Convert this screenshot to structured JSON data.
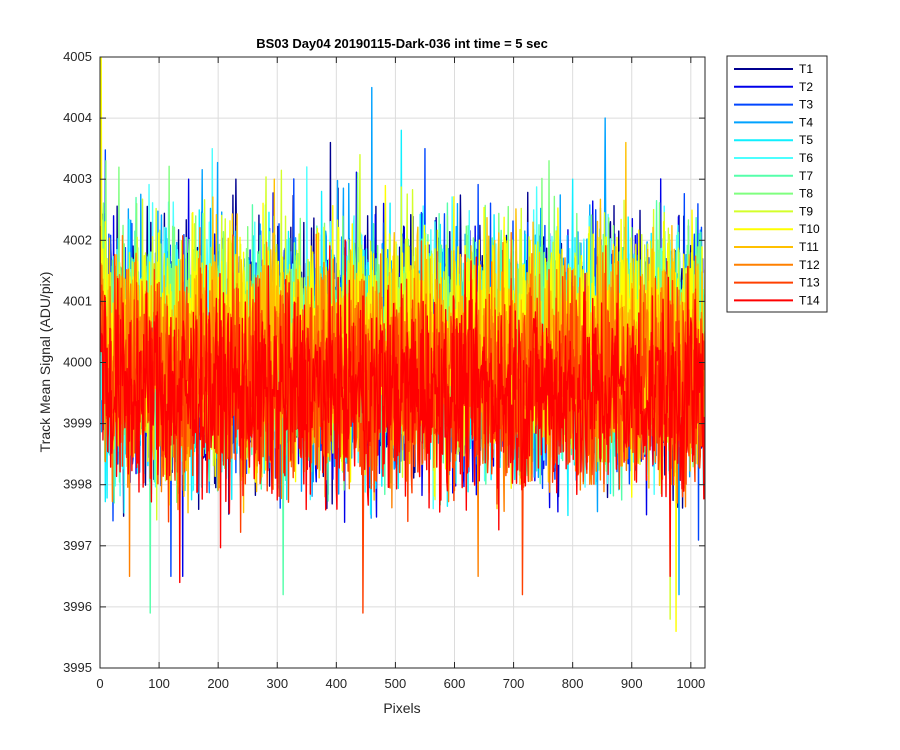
{
  "chart_data": {
    "type": "line",
    "title": "BS03 Day04 20190115-Dark-036 int time = 5 sec",
    "xlabel": "Pixels",
    "ylabel": "Track Mean Signal (ADU/pix)",
    "xlim": [
      0,
      1024
    ],
    "ylim": [
      3995,
      4005
    ],
    "xticks": [
      0,
      100,
      200,
      300,
      400,
      500,
      600,
      700,
      800,
      900,
      1000
    ],
    "yticks": [
      3995,
      3996,
      3997,
      3998,
      3999,
      4000,
      4001,
      4002,
      4003,
      4004,
      4005
    ],
    "grid": true,
    "legend_position": "outside-right",
    "series": [
      {
        "name": "T1",
        "color": "#00008f",
        "center": 4000.2,
        "spread": 2.7,
        "peaks": [
          [
            230,
            4003.0
          ],
          [
            390,
            4003.6
          ]
        ]
      },
      {
        "name": "T2",
        "color": "#0000ea",
        "center": 4000.1,
        "spread": 2.7,
        "peaks": [
          [
            150,
            4003.0
          ],
          [
            140,
            3996.5
          ]
        ]
      },
      {
        "name": "T3",
        "color": "#0046ff",
        "center": 4000.2,
        "spread": 2.7,
        "peaks": [
          [
            550,
            4003.5
          ],
          [
            120,
            3996.5
          ]
        ]
      },
      {
        "name": "T4",
        "color": "#00a2ff",
        "center": 4000.2,
        "spread": 2.7,
        "peaks": [
          [
            460,
            4004.5
          ],
          [
            855,
            4004.0
          ],
          [
            980,
            3996.2
          ]
        ]
      },
      {
        "name": "T5",
        "color": "#0ff0ff",
        "center": 4000.1,
        "spread": 2.6,
        "peaks": [
          [
            510,
            4003.8
          ],
          [
            800,
            4003.0
          ]
        ]
      },
      {
        "name": "T6",
        "color": "#4cffff",
        "center": 4000.2,
        "spread": 2.6,
        "peaks": [
          [
            190,
            4003.5
          ],
          [
            350,
            4003.2
          ]
        ]
      },
      {
        "name": "T7",
        "color": "#55ffaa",
        "center": 4000.2,
        "spread": 2.6,
        "peaks": [
          [
            85,
            3995.9
          ],
          [
            310,
            3996.2
          ]
        ]
      },
      {
        "name": "T8",
        "color": "#7fff7f",
        "center": 4000.4,
        "spread": 2.6,
        "peaks": [
          [
            10,
            4003.3
          ],
          [
            760,
            4003.3
          ]
        ]
      },
      {
        "name": "T9",
        "color": "#d4ff2a",
        "center": 4000.3,
        "spread": 2.5,
        "peaks": [
          [
            965,
            3995.8
          ],
          [
            440,
            4003.4
          ]
        ]
      },
      {
        "name": "T10",
        "color": "#ffff00",
        "center": 4000.3,
        "spread": 2.5,
        "peaks": [
          [
            2,
            4005.0
          ],
          [
            975,
            3995.6
          ]
        ]
      },
      {
        "name": "T11",
        "color": "#ffc000",
        "center": 4000.1,
        "spread": 2.5,
        "peaks": [
          [
            890,
            4003.6
          ],
          [
            295,
            4003.0
          ]
        ]
      },
      {
        "name": "T12",
        "color": "#ff8000",
        "center": 3999.9,
        "spread": 2.4,
        "peaks": [
          [
            50,
            3996.5
          ],
          [
            640,
            3996.5
          ]
        ]
      },
      {
        "name": "T13",
        "color": "#ff4000",
        "center": 3999.6,
        "spread": 2.3,
        "peaks": [
          [
            445,
            3995.9
          ],
          [
            715,
            3996.2
          ]
        ]
      },
      {
        "name": "T14",
        "color": "#ff0000",
        "center": 3999.5,
        "spread": 2.2,
        "peaks": [
          [
            135,
            3996.4
          ],
          [
            965,
            3996.5
          ]
        ]
      }
    ]
  }
}
